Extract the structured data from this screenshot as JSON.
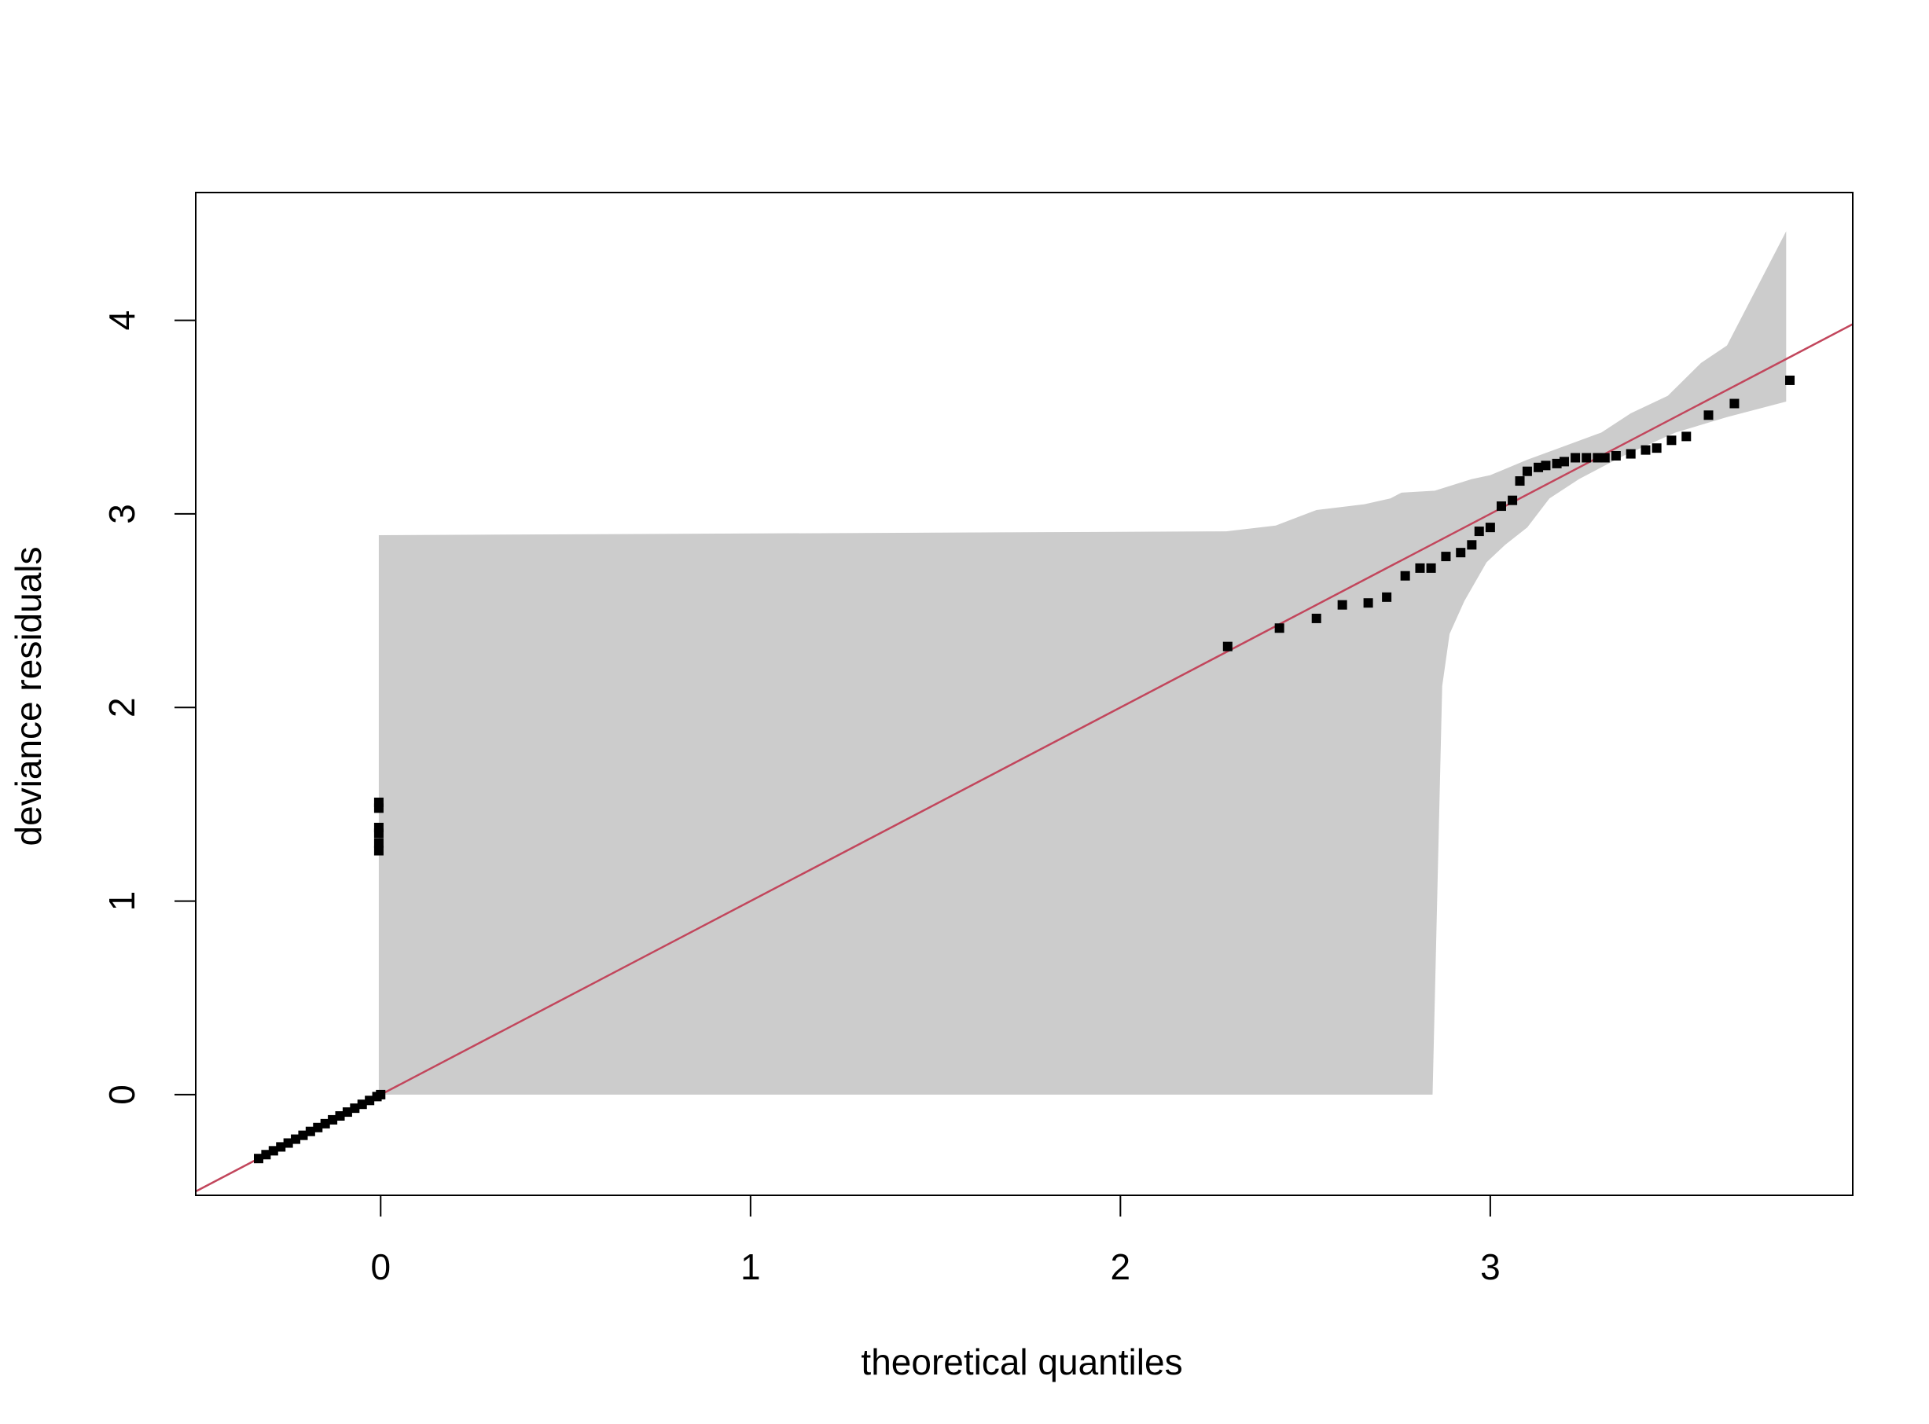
{
  "chart_data": {
    "type": "scatter",
    "x_label": "theoretical quantiles",
    "y_label": "deviance residuals",
    "xlim": [
      -0.5,
      3.98
    ],
    "ylim": [
      -0.52,
      4.66
    ],
    "xticks": [
      0,
      1,
      2,
      3
    ],
    "yticks": [
      0,
      1,
      2,
      3,
      4
    ],
    "grid": false,
    "point_color": "#000000",
    "x": [
      -0.33,
      -0.31,
      -0.29,
      -0.27,
      -0.25,
      -0.23,
      -0.21,
      -0.19,
      -0.17,
      -0.15,
      -0.13,
      -0.11,
      -0.09,
      -0.07,
      -0.05,
      -0.03,
      -0.01,
      0.0,
      -0.005,
      -0.005,
      -0.005,
      -0.005,
      -0.005,
      -0.005,
      2.29,
      2.43,
      2.53,
      2.6,
      2.67,
      2.72,
      2.77,
      2.81,
      2.84,
      2.88,
      2.92,
      2.95,
      2.97,
      3.0,
      3.03,
      3.06,
      3.08,
      3.1,
      3.13,
      3.15,
      3.18,
      3.2,
      3.23,
      3.26,
      3.29,
      3.31,
      3.34,
      3.38,
      3.42,
      3.45,
      3.49,
      3.53,
      3.59,
      3.66,
      3.81
    ],
    "values": [
      -0.33,
      -0.31,
      -0.29,
      -0.27,
      -0.25,
      -0.23,
      -0.21,
      -0.19,
      -0.17,
      -0.15,
      -0.13,
      -0.11,
      -0.09,
      -0.07,
      -0.05,
      -0.03,
      -0.01,
      0.0,
      1.26,
      1.3,
      1.35,
      1.38,
      1.48,
      1.51,
      2.315,
      2.41,
      2.46,
      2.53,
      2.54,
      2.57,
      2.68,
      2.72,
      2.72,
      2.78,
      2.8,
      2.84,
      2.91,
      2.93,
      3.04,
      3.07,
      3.17,
      3.22,
      3.24,
      3.25,
      3.26,
      3.27,
      3.29,
      3.29,
      3.29,
      3.29,
      3.3,
      3.31,
      3.33,
      3.34,
      3.38,
      3.4,
      3.51,
      3.57,
      3.69
    ],
    "reference_line": {
      "slope": 1,
      "intercept": 0,
      "color": "#c2465c"
    },
    "band": {
      "color": "#cccccc",
      "upper_x": [
        -0.005,
        -0.005,
        2.286,
        2.42,
        2.53,
        2.66,
        2.73,
        2.76,
        2.85,
        2.95,
        3.0,
        3.1,
        3.2,
        3.3,
        3.38,
        3.48,
        3.57,
        3.64,
        3.8
      ],
      "upper_y": [
        0.0,
        2.89,
        2.91,
        2.94,
        3.02,
        3.05,
        3.08,
        3.11,
        3.12,
        3.18,
        3.2,
        3.28,
        3.35,
        3.42,
        3.52,
        3.61,
        3.78,
        3.87,
        4.46
      ],
      "lower_x": [
        3.8,
        3.64,
        3.5,
        3.36,
        3.24,
        3.16,
        3.1,
        3.04,
        2.99,
        2.93,
        2.89,
        2.87,
        2.844
      ],
      "lower_y": [
        3.58,
        3.5,
        3.42,
        3.3,
        3.18,
        3.08,
        2.93,
        2.84,
        2.75,
        2.55,
        2.38,
        2.11,
        0.0
      ]
    }
  }
}
